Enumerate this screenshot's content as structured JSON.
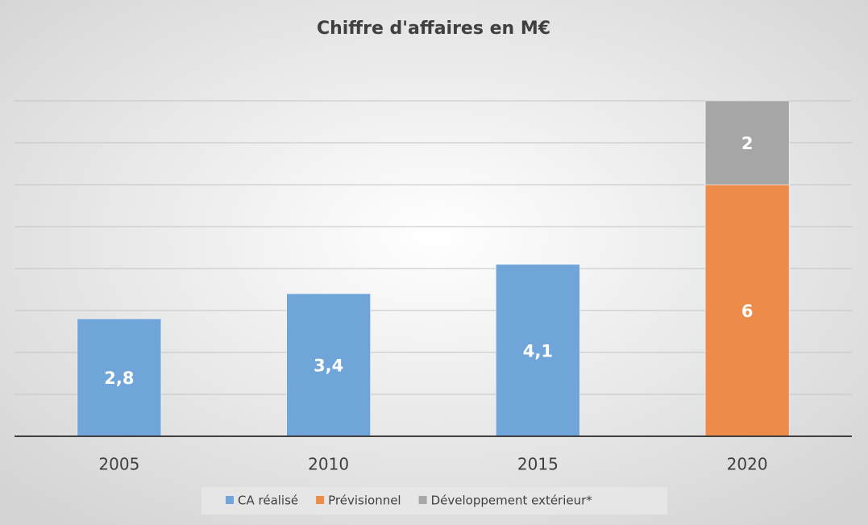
{
  "chart_data": {
    "type": "stacked_bar",
    "title": "Chiffre d'affaires en M€",
    "categories": [
      "2005",
      "2010",
      "2015",
      "2020"
    ],
    "series": [
      {
        "name": "CA réalisé",
        "color": "#70a5d9",
        "values": [
          2.8,
          3.4,
          4.1,
          null
        ],
        "value_labels": [
          "2,8",
          "3,4",
          "4,1",
          null
        ]
      },
      {
        "name": "Prévisionnel",
        "color": "#ed8b4a",
        "values": [
          null,
          null,
          null,
          6
        ]
      },
      {
        "name": "Développement extérieur*",
        "color": "#a6a6a6",
        "values": [
          null,
          null,
          null,
          2
        ]
      }
    ],
    "ylim": [
      0,
      8
    ],
    "yticks": [
      0,
      1,
      2,
      3,
      4,
      5,
      6,
      7,
      8
    ],
    "grid": true,
    "legend": "bottom"
  }
}
